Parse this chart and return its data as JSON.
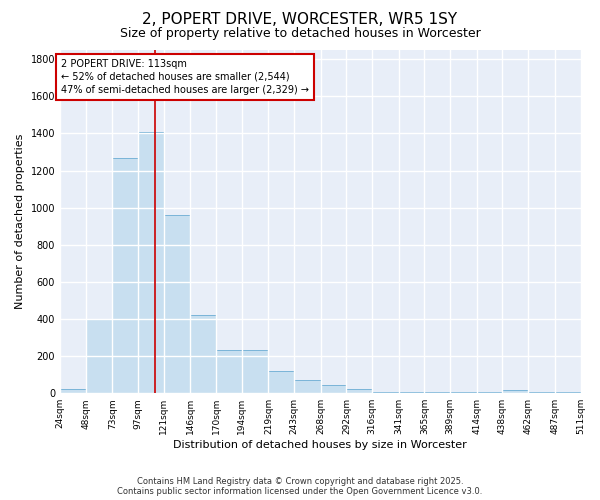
{
  "title": "2, POPERT DRIVE, WORCESTER, WR5 1SY",
  "subtitle": "Size of property relative to detached houses in Worcester",
  "xlabel": "Distribution of detached houses by size in Worcester",
  "ylabel": "Number of detached properties",
  "bar_color": "#c8dff0",
  "bar_edge_color": "#7ab4d8",
  "background_color": "#e8eef8",
  "grid_color": "#ffffff",
  "bin_edges": [
    24,
    48,
    73,
    97,
    121,
    146,
    170,
    194,
    219,
    243,
    268,
    292,
    316,
    341,
    365,
    389,
    414,
    438,
    462,
    487,
    511
  ],
  "bin_labels": [
    "24sqm",
    "48sqm",
    "73sqm",
    "97sqm",
    "121sqm",
    "146sqm",
    "170sqm",
    "194sqm",
    "219sqm",
    "243sqm",
    "268sqm",
    "292sqm",
    "316sqm",
    "341sqm",
    "365sqm",
    "389sqm",
    "414sqm",
    "438sqm",
    "462sqm",
    "487sqm",
    "511sqm"
  ],
  "counts": [
    25,
    400,
    1270,
    1410,
    960,
    420,
    235,
    235,
    120,
    70,
    45,
    20,
    5,
    5,
    5,
    5,
    5,
    15,
    5,
    5
  ],
  "property_size": 113,
  "vline_color": "#cc0000",
  "annotation_text": "2 POPERT DRIVE: 113sqm\n← 52% of detached houses are smaller (2,544)\n47% of semi-detached houses are larger (2,329) →",
  "annotation_box_color": "#cc0000",
  "ylim": [
    0,
    1850
  ],
  "yticks": [
    0,
    200,
    400,
    600,
    800,
    1000,
    1200,
    1400,
    1600,
    1800
  ],
  "footer_line1": "Contains HM Land Registry data © Crown copyright and database right 2025.",
  "footer_line2": "Contains public sector information licensed under the Open Government Licence v3.0.",
  "title_fontsize": 11,
  "subtitle_fontsize": 9,
  "xlabel_fontsize": 8,
  "ylabel_fontsize": 8,
  "tick_fontsize": 6.5,
  "annotation_fontsize": 7,
  "footer_fontsize": 6
}
